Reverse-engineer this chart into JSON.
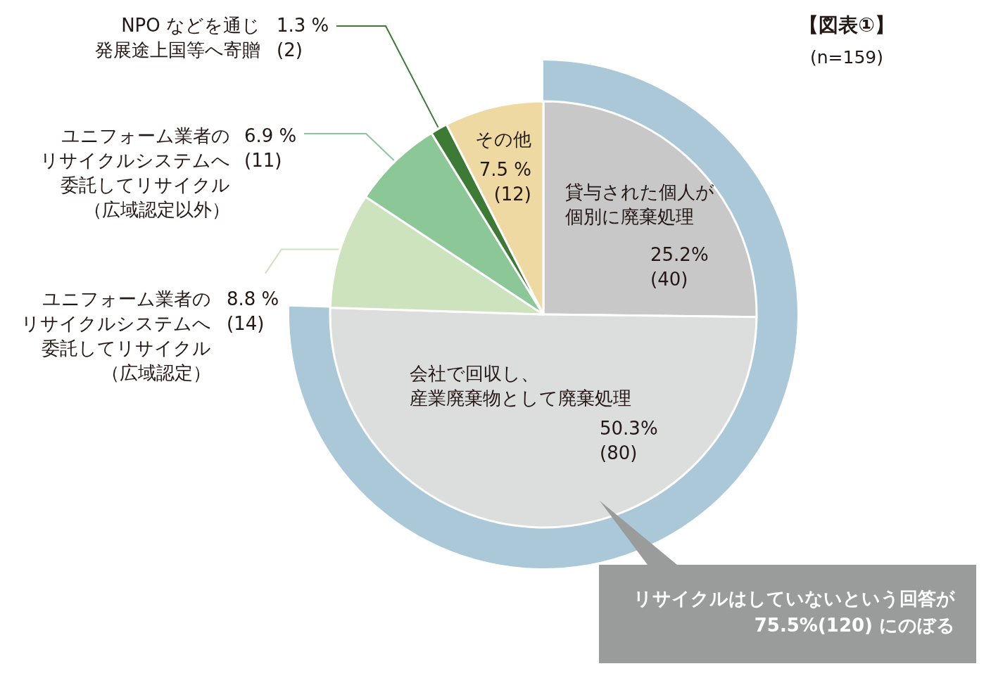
{
  "chart_data": {
    "type": "pie",
    "title": "【図表①】",
    "subtitle": "(n=159)",
    "categories": [
      "貸与された個人が個別に廃棄処理",
      "会社で回収し、産業廃棄物として廃棄処理",
      "ユニフォーム業者のリサイクルシステムへ委託してリサイクル（広域認定）",
      "ユニフォーム業者のリサイクルシステムへ委託してリサイクル（広域認定以外）",
      "NPO などを通じ発展途上国等へ寄贈",
      "その他"
    ],
    "values": [
      25.2,
      50.3,
      8.8,
      6.9,
      1.3,
      7.5
    ],
    "colors": [
      "#c8c8c8",
      "#dcdddd",
      "#cde3bd",
      "#8bc797",
      "#3c7a35",
      "#eed9a3"
    ],
    "value_labels": [
      "25.2%\n(40)",
      "50.3%\n(80)",
      "8.8 %\n(14)",
      "6.9 %\n(11)",
      "1.3 %\n(2)",
      "7.5 %\n(12)"
    ],
    "annotations": [
      "リサイクルはしていないという回答が75.5%(120) にのぼる"
    ]
  }
}
